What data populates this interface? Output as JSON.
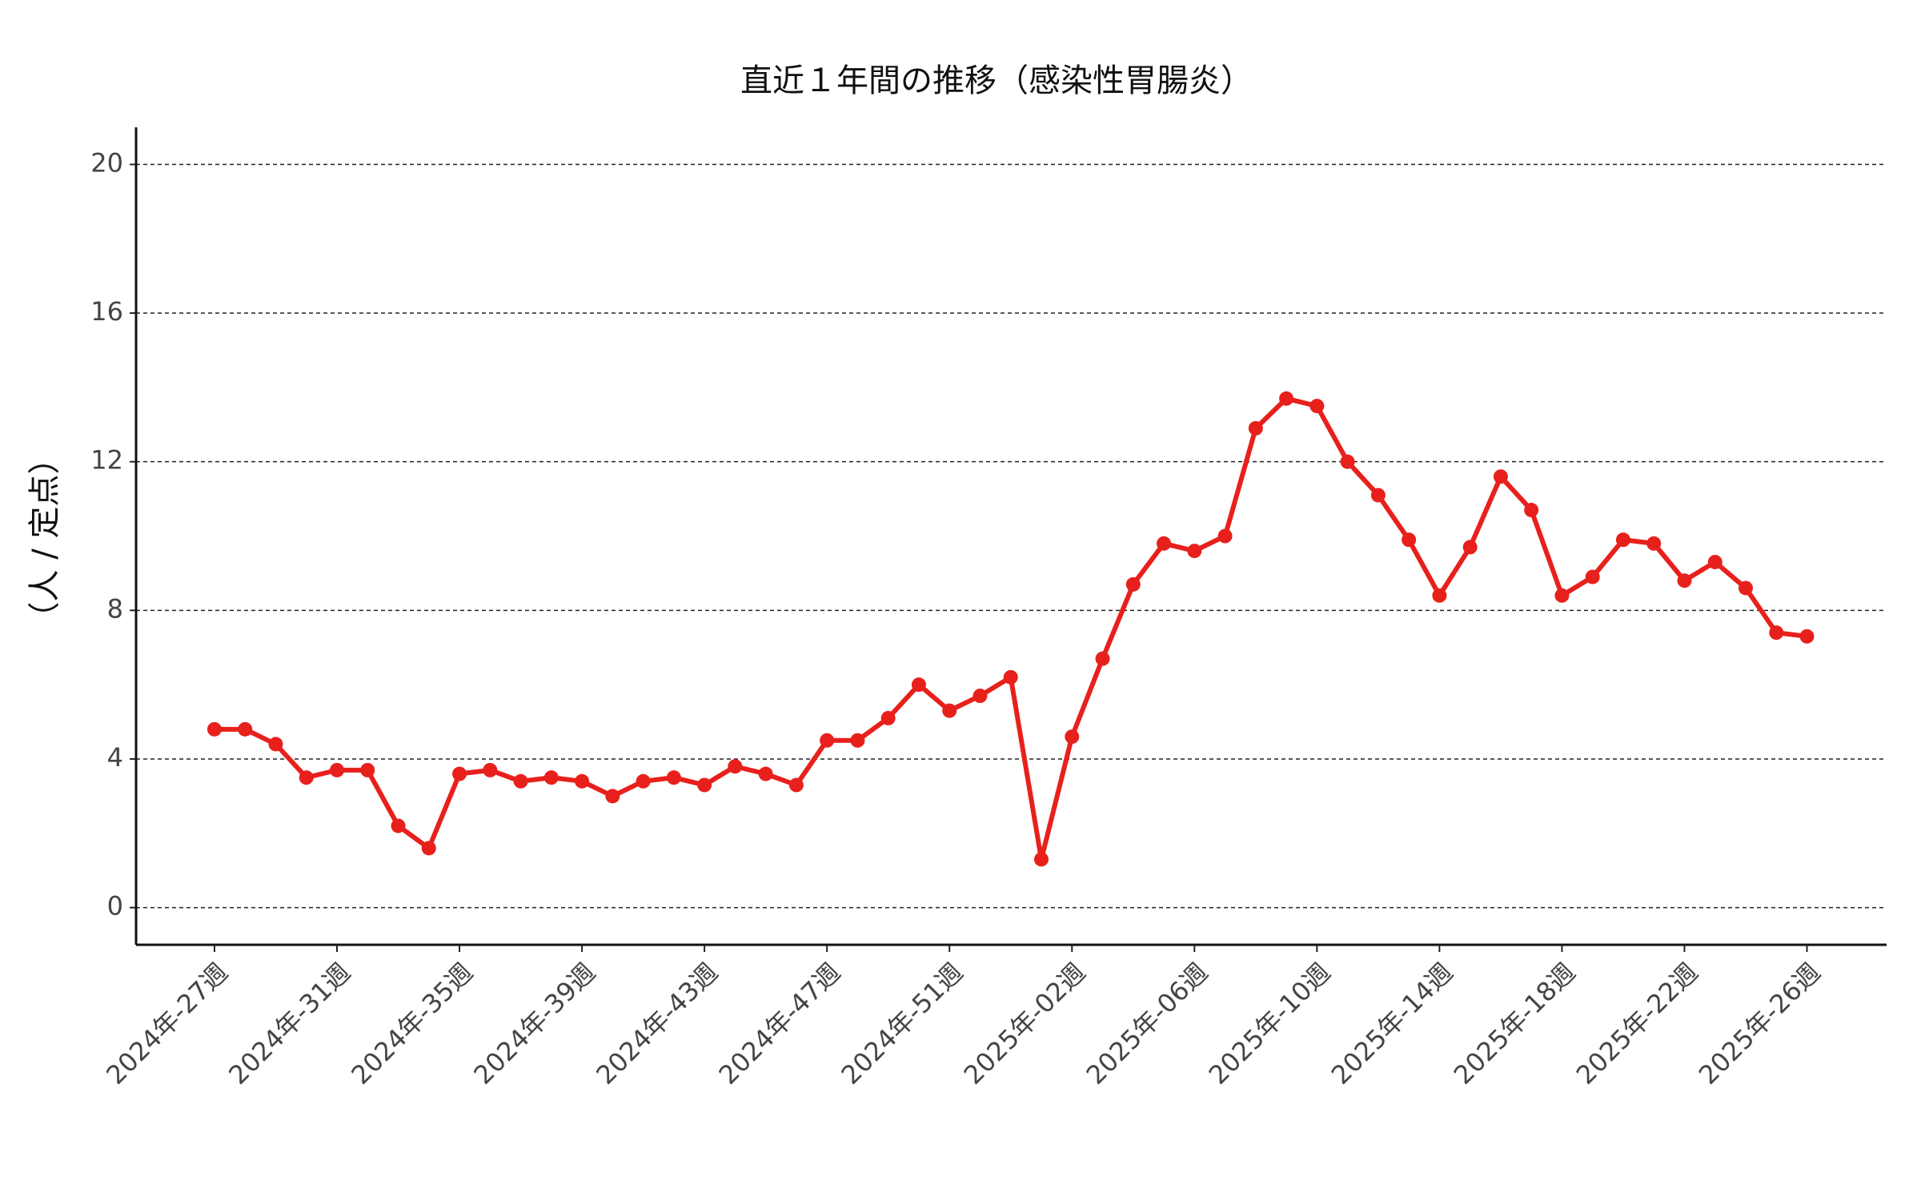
{
  "chart_data": {
    "type": "line",
    "title": "直近１年間の推移（感染性胃腸炎）",
    "y_label": "（人 / 定点）",
    "categories": [
      "2024年-27週",
      null,
      null,
      null,
      "2024年-31週",
      null,
      null,
      null,
      "2024年-35週",
      null,
      null,
      null,
      "2024年-39週",
      null,
      null,
      null,
      "2024年-43週",
      null,
      null,
      null,
      "2024年-47週",
      null,
      null,
      null,
      "2024年-51週",
      null,
      null,
      null,
      "2025年-02週",
      null,
      null,
      null,
      "2025年-06週",
      null,
      null,
      null,
      "2025年-10週",
      null,
      null,
      null,
      "2025年-14週",
      null,
      null,
      null,
      "2025年-18週",
      null,
      null,
      null,
      "2025年-22週",
      null,
      null,
      null,
      "2025年-26週"
    ],
    "series": [
      {
        "color": "#e8201c",
        "values": [
          4.8,
          4.8,
          4.4,
          3.5,
          3.7,
          3.7,
          2.2,
          1.6,
          3.6,
          3.7,
          3.4,
          3.5,
          3.4,
          3.0,
          3.4,
          3.5,
          3.3,
          3.8,
          3.6,
          3.3,
          4.5,
          4.5,
          5.1,
          6.0,
          5.3,
          5.7,
          6.2,
          1.3,
          4.6,
          6.7,
          8.7,
          9.8,
          9.6,
          10.0,
          12.9,
          13.7,
          13.5,
          12.0,
          11.1,
          9.9,
          8.4,
          9.7,
          11.6,
          10.7,
          8.4,
          8.9,
          9.9,
          9.8,
          8.8,
          9.3,
          8.6,
          7.4,
          7.3
        ]
      }
    ],
    "ylim": [
      -1,
      21
    ],
    "yticks": [
      0,
      4,
      8,
      12,
      16,
      20
    ],
    "grid": true
  }
}
